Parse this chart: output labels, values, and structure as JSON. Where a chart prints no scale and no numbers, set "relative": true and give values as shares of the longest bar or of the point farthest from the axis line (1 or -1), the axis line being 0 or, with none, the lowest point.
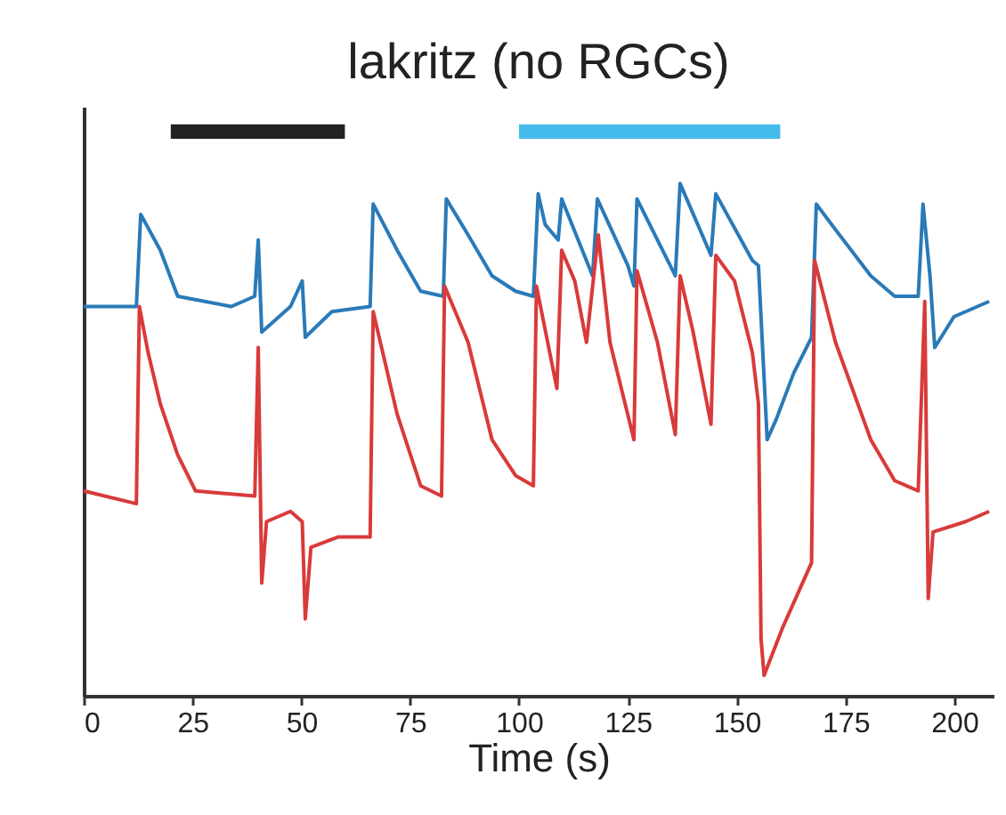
{
  "chart_data": {
    "type": "line",
    "title": "lakritz (no RGCs)",
    "xlabel": "Time (s)",
    "relative": true,
    "xlim": [
      0,
      209
    ],
    "xticks": [
      0,
      25,
      50,
      75,
      100,
      125,
      150,
      175,
      200
    ],
    "grid": false,
    "marker": "none",
    "line_style": "solid",
    "bands": [
      {
        "axis": "x",
        "from": 20,
        "to": 60,
        "color": "#222222"
      },
      {
        "axis": "x",
        "from": 100,
        "to": 160,
        "color": "#45bbec"
      }
    ],
    "series": [
      {
        "color": "#2a7ab8",
        "x": [
          0,
          12.1,
          13.1,
          17.6,
          21.6,
          33.9,
          39.3,
          40.1,
          40.9,
          47.5,
          50.2,
          50.9,
          57.0,
          65.8,
          66.5,
          72.0,
          77.4,
          82.6,
          83.3,
          88.3,
          93.8,
          99.2,
          103.3,
          104.4,
          106.0,
          109.0,
          109.8,
          116.9,
          118.0,
          125.0,
          126.4,
          127.1,
          135.9,
          137.0,
          144.1,
          145.2,
          153.6,
          155.0,
          157.0,
          159.1,
          163.1,
          167.2,
          168.3,
          172.7,
          180.8,
          186.3,
          191.7,
          192.8,
          194.4,
          195.5,
          199.9,
          208.0
        ],
        "values": [
          0.76,
          0.76,
          0.94,
          0.87,
          0.78,
          0.76,
          0.78,
          0.89,
          0.71,
          0.76,
          0.81,
          0.7,
          0.75,
          0.76,
          0.96,
          0.87,
          0.79,
          0.78,
          0.97,
          0.9,
          0.82,
          0.79,
          0.78,
          0.98,
          0.92,
          0.89,
          0.97,
          0.82,
          0.97,
          0.84,
          0.8,
          0.97,
          0.82,
          1.0,
          0.86,
          0.98,
          0.85,
          0.84,
          0.5,
          0.54,
          0.63,
          0.7,
          0.96,
          0.91,
          0.82,
          0.78,
          0.78,
          0.96,
          0.82,
          0.68,
          0.74,
          0.77
        ]
      },
      {
        "color": "#d93a3a",
        "x": [
          0,
          12.1,
          12.8,
          14.8,
          17.6,
          21.6,
          25.7,
          39.3,
          40.1,
          40.9,
          42.0,
          47.5,
          50.2,
          50.9,
          52.2,
          58.4,
          65.8,
          66.5,
          72.0,
          77.4,
          82.2,
          82.9,
          88.3,
          93.8,
          99.2,
          103.3,
          104.0,
          108.7,
          109.8,
          112.8,
          115.5,
          118.2,
          120.9,
          126.4,
          127.1,
          131.8,
          135.9,
          137.0,
          140.0,
          144.1,
          145.2,
          149.5,
          153.6,
          155.0,
          155.6,
          156.3,
          160.4,
          167.2,
          167.9,
          172.7,
          180.8,
          186.3,
          191.7,
          193.2,
          194.0,
          195.1,
          202.6,
          208.0
        ],
        "values": [
          0.4,
          0.375,
          0.76,
          0.67,
          0.57,
          0.47,
          0.4,
          0.39,
          0.68,
          0.22,
          0.34,
          0.36,
          0.34,
          0.15,
          0.29,
          0.31,
          0.31,
          0.75,
          0.55,
          0.41,
          0.39,
          0.8,
          0.69,
          0.5,
          0.43,
          0.41,
          0.8,
          0.6,
          0.87,
          0.81,
          0.69,
          0.9,
          0.69,
          0.5,
          0.83,
          0.69,
          0.51,
          0.82,
          0.71,
          0.53,
          0.86,
          0.81,
          0.67,
          0.57,
          0.11,
          0.04,
          0.13,
          0.26,
          0.85,
          0.69,
          0.5,
          0.42,
          0.4,
          0.77,
          0.19,
          0.32,
          0.34,
          0.36
        ]
      }
    ]
  }
}
